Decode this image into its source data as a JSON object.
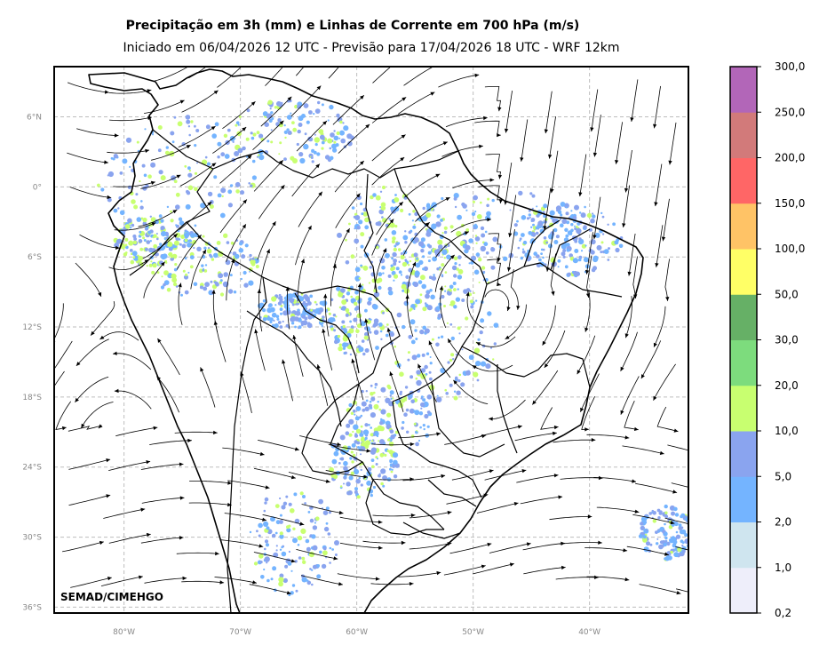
{
  "title": "Precipitação em 3h (mm) e Linhas de Corrente em 700 hPa (m/s)",
  "subtitle": "Iniciado em 06/04/2026 12 UTC - Previsão para 17/04/2026 18 UTC - WRF 12km",
  "credit": "SEMAD/CIMEHGO",
  "map": {
    "lon_range": [
      -86,
      -31.5
    ],
    "lat_range": [
      -36.5,
      10.3
    ],
    "lon_ticks": [
      {
        "value": -80,
        "label": "80°W"
      },
      {
        "value": -70,
        "label": "70°W"
      },
      {
        "value": -60,
        "label": "60°W"
      },
      {
        "value": -50,
        "label": "50°W"
      },
      {
        "value": -40,
        "label": "40°W"
      }
    ],
    "lat_ticks": [
      {
        "value": 6,
        "label": "6°N"
      },
      {
        "value": 0,
        "label": "0°"
      },
      {
        "value": -6,
        "label": "6°S"
      },
      {
        "value": -12,
        "label": "12°S"
      },
      {
        "value": -18,
        "label": "18°S"
      },
      {
        "value": -24,
        "label": "24°S"
      },
      {
        "value": -30,
        "label": "30°S"
      },
      {
        "value": -36,
        "label": "36°S"
      }
    ],
    "grid": true
  },
  "colorbar": {
    "levels": [
      "0,2",
      "1,0",
      "2,0",
      "5,0",
      "10,0",
      "20,0",
      "30,0",
      "50,0",
      "100,0",
      "150,0",
      "200,0",
      "250,0",
      "300,0"
    ],
    "colors": [
      "#eeeefa",
      "#cfe5ef",
      "#74b4ff",
      "#8aa4ef",
      "#c8ff70",
      "#7ddc7d",
      "#66b066",
      "#ffff66",
      "#ffc366",
      "#ff6666",
      "#d27a7a",
      "#b266b8"
    ]
  }
}
